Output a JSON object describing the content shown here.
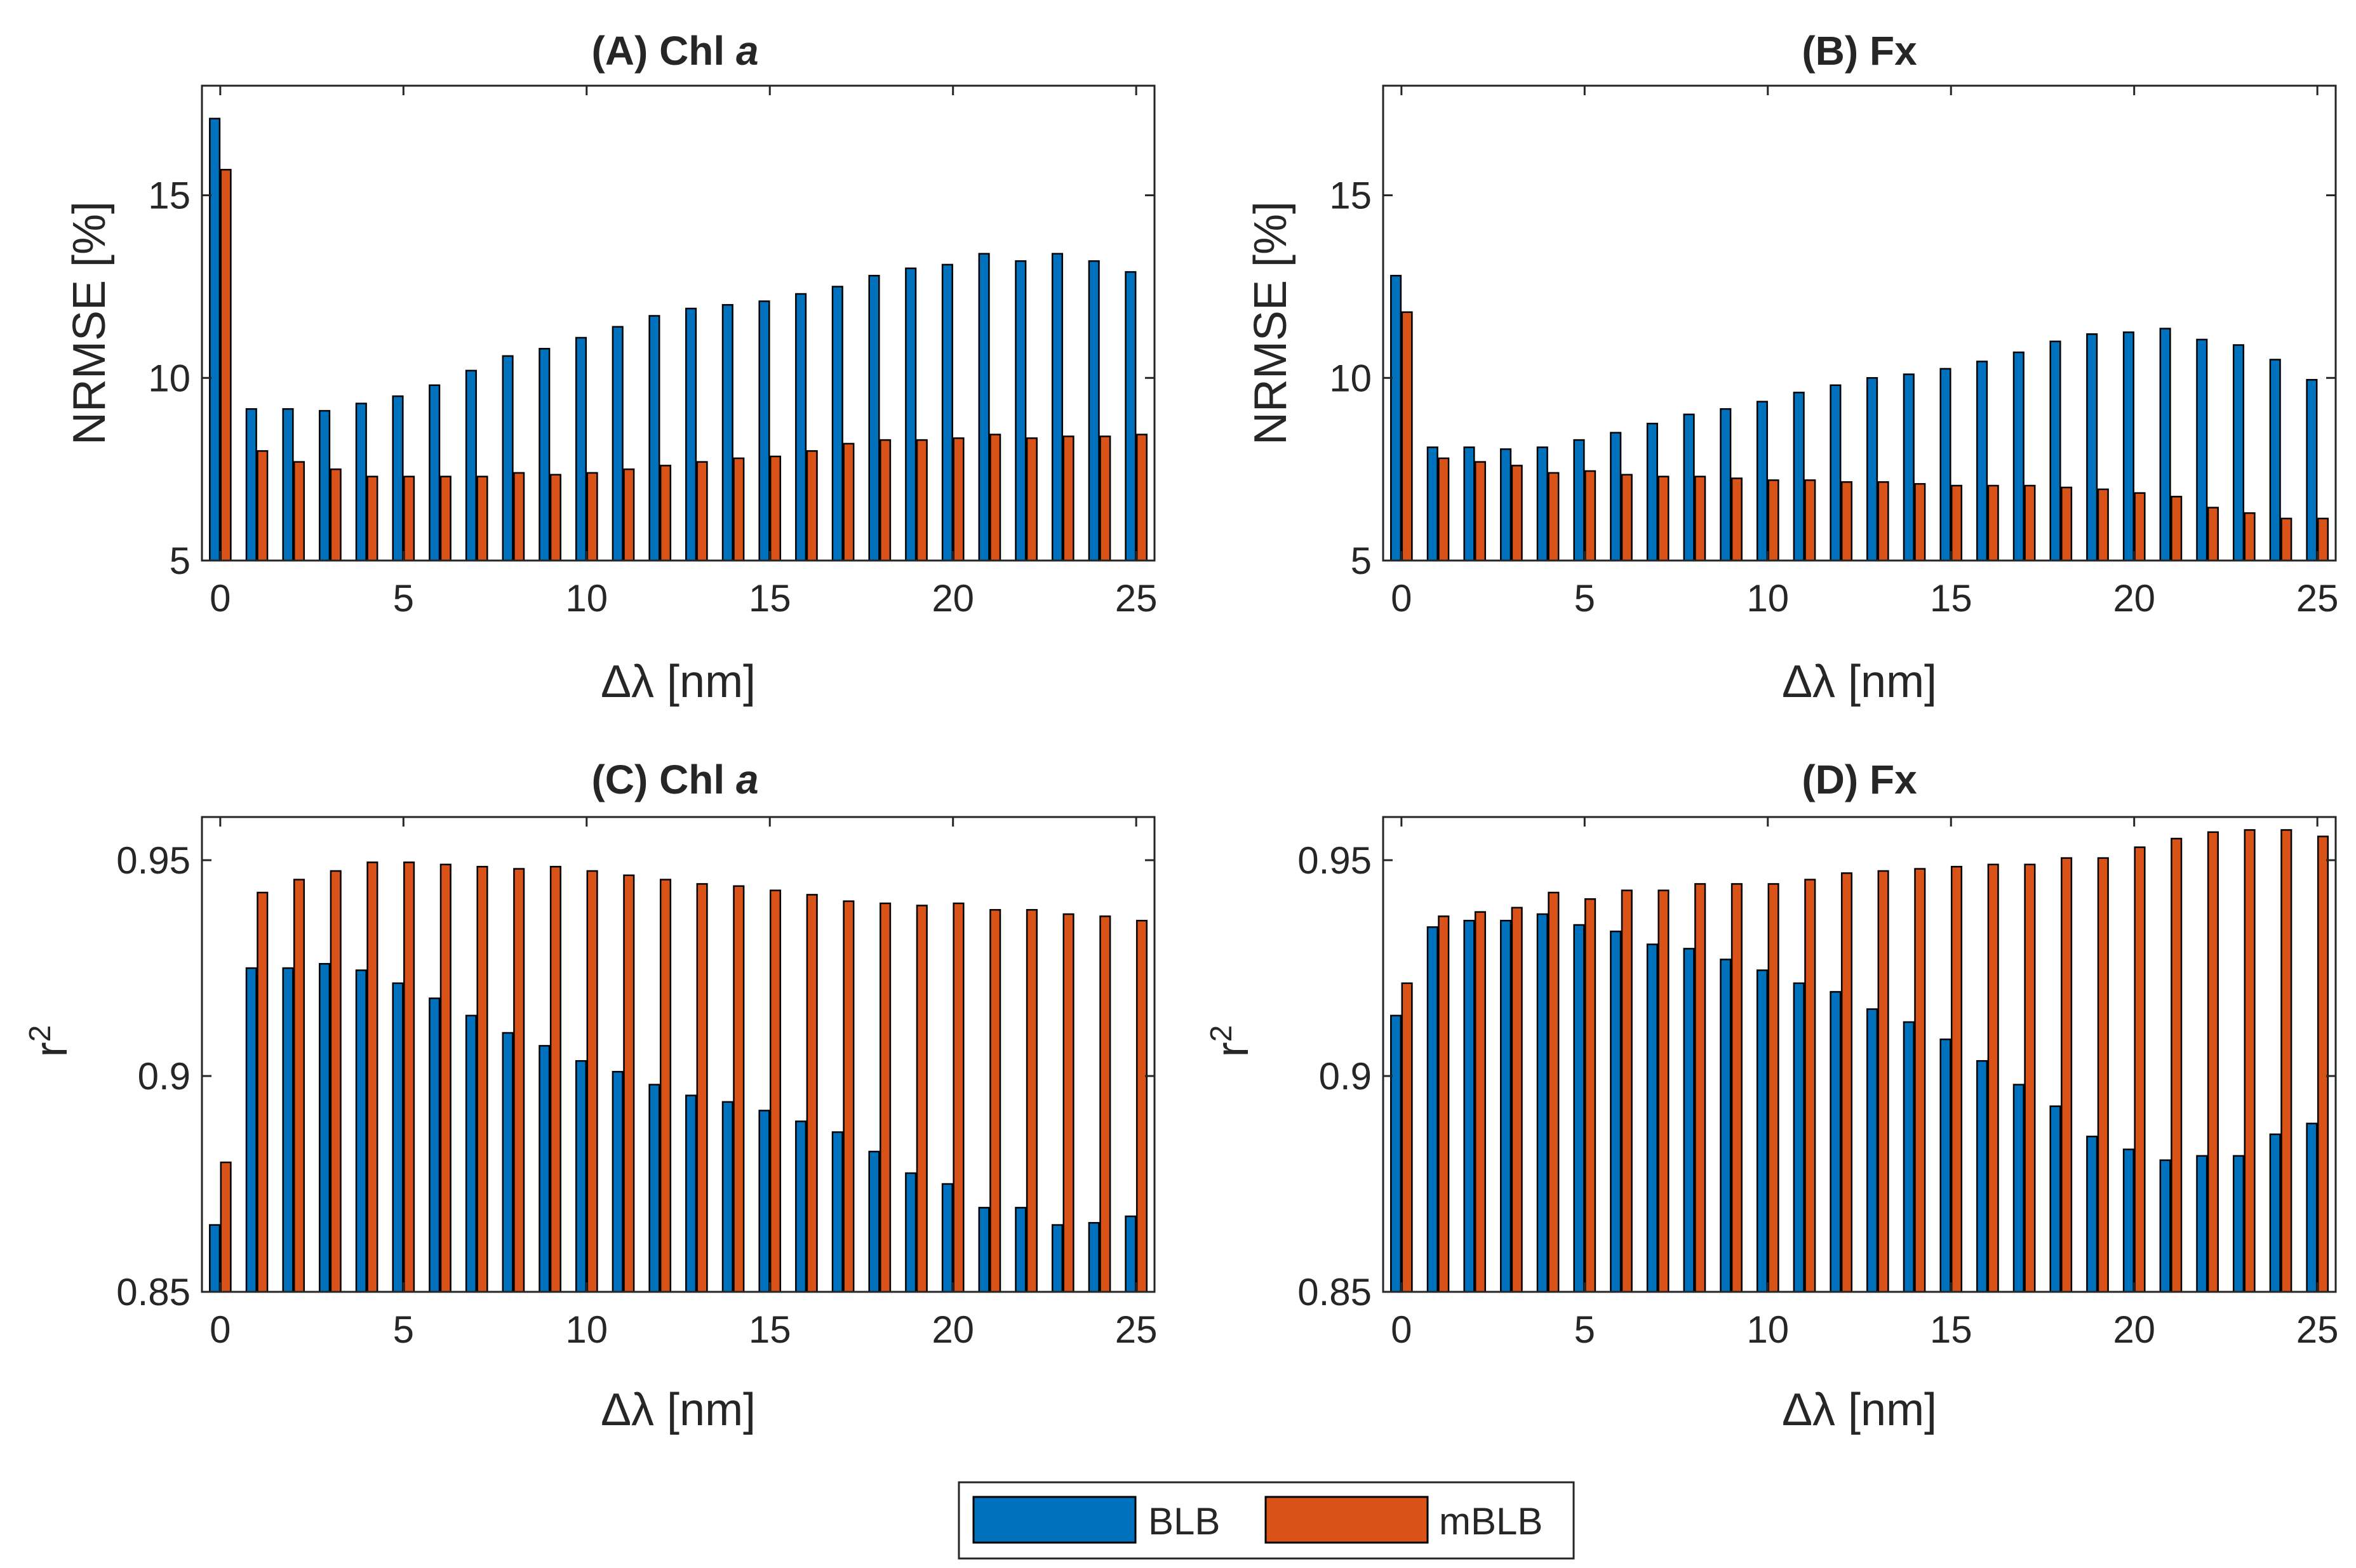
{
  "chart_data": [
    {
      "id": "A",
      "type": "bar",
      "title": "(A) Chl ",
      "title_italic": "a",
      "xlabel": "Δλ [nm]",
      "ylabel": "NRMSE [%]",
      "ylim": [
        5,
        18
      ],
      "xlim": [
        -0.5,
        25.5
      ],
      "xticks": [
        0,
        5,
        10,
        15,
        20,
        25
      ],
      "yticks": [
        5,
        10,
        15
      ],
      "ytick_labels": [
        "5",
        "10",
        "15"
      ],
      "x": [
        0,
        1,
        2,
        3,
        4,
        5,
        6,
        7,
        8,
        9,
        10,
        11,
        12,
        13,
        14,
        15,
        16,
        17,
        18,
        19,
        20,
        21,
        22,
        23,
        24,
        25
      ],
      "series": [
        {
          "name": "BLB",
          "values": [
            17.1,
            9.15,
            9.15,
            9.1,
            9.3,
            9.5,
            9.8,
            10.2,
            10.6,
            10.8,
            11.1,
            11.4,
            11.7,
            11.9,
            12.0,
            12.1,
            12.3,
            12.5,
            12.8,
            13.0,
            13.1,
            13.4,
            13.2,
            13.4,
            13.2,
            12.9
          ]
        },
        {
          "name": "mBLB",
          "values": [
            15.7,
            8.0,
            7.7,
            7.5,
            7.3,
            7.3,
            7.3,
            7.3,
            7.4,
            7.35,
            7.4,
            7.5,
            7.6,
            7.7,
            7.8,
            7.85,
            8.0,
            8.2,
            8.3,
            8.3,
            8.35,
            8.45,
            8.35,
            8.4,
            8.4,
            8.45
          ]
        }
      ]
    },
    {
      "id": "B",
      "type": "bar",
      "title": "(B) Fx",
      "title_italic": "",
      "xlabel": "Δλ [nm]",
      "ylabel": "NRMSE [%]",
      "ylim": [
        5,
        18
      ],
      "xlim": [
        -0.5,
        25.5
      ],
      "xticks": [
        0,
        5,
        10,
        15,
        20,
        25
      ],
      "yticks": [
        5,
        10,
        15
      ],
      "ytick_labels": [
        "5",
        "10",
        "15"
      ],
      "x": [
        0,
        1,
        2,
        3,
        4,
        5,
        6,
        7,
        8,
        9,
        10,
        11,
        12,
        13,
        14,
        15,
        16,
        17,
        18,
        19,
        20,
        21,
        22,
        23,
        24,
        25
      ],
      "series": [
        {
          "name": "BLB",
          "values": [
            12.8,
            8.1,
            8.1,
            8.05,
            8.1,
            8.3,
            8.5,
            8.75,
            9.0,
            9.15,
            9.35,
            9.6,
            9.8,
            10.0,
            10.1,
            10.25,
            10.45,
            10.7,
            11.0,
            11.2,
            11.25,
            11.35,
            11.05,
            10.9,
            10.5,
            9.95
          ]
        },
        {
          "name": "mBLB",
          "values": [
            11.8,
            7.8,
            7.7,
            7.6,
            7.4,
            7.45,
            7.35,
            7.3,
            7.3,
            7.25,
            7.2,
            7.2,
            7.15,
            7.15,
            7.1,
            7.05,
            7.05,
            7.05,
            7.0,
            6.95,
            6.85,
            6.75,
            6.45,
            6.3,
            6.15,
            6.15
          ]
        }
      ]
    },
    {
      "id": "C",
      "type": "bar",
      "title": "(C) Chl ",
      "title_italic": "a",
      "xlabel": "Δλ [nm]",
      "ylabel": "r",
      "ylabel_sup": "2",
      "ylim": [
        0.85,
        0.96
      ],
      "xlim": [
        -0.5,
        25.5
      ],
      "xticks": [
        0,
        5,
        10,
        15,
        20,
        25
      ],
      "yticks": [
        0.85,
        0.9,
        0.95
      ],
      "ytick_labels": [
        "0.85",
        "0.9",
        "0.95"
      ],
      "x": [
        0,
        1,
        2,
        3,
        4,
        5,
        6,
        7,
        8,
        9,
        10,
        11,
        12,
        13,
        14,
        15,
        16,
        17,
        18,
        19,
        20,
        21,
        22,
        23,
        24,
        25
      ],
      "series": [
        {
          "name": "BLB",
          "values": [
            0.8655,
            0.925,
            0.925,
            0.926,
            0.9245,
            0.9215,
            0.918,
            0.914,
            0.91,
            0.907,
            0.9035,
            0.901,
            0.898,
            0.8955,
            0.894,
            0.892,
            0.8895,
            0.887,
            0.8825,
            0.8775,
            0.875,
            0.8695,
            0.8695,
            0.8655,
            0.866,
            0.8675
          ]
        },
        {
          "name": "mBLB",
          "values": [
            0.88,
            0.9425,
            0.9455,
            0.9475,
            0.9495,
            0.9495,
            0.949,
            0.9485,
            0.948,
            0.9485,
            0.9475,
            0.9465,
            0.9455,
            0.9445,
            0.944,
            0.943,
            0.942,
            0.9405,
            0.94,
            0.9395,
            0.94,
            0.9385,
            0.9385,
            0.9375,
            0.937,
            0.936
          ]
        }
      ]
    },
    {
      "id": "D",
      "type": "bar",
      "title": "(D) Fx",
      "title_italic": "",
      "xlabel": "Δλ [nm]",
      "ylabel": "r",
      "ylabel_sup": "2",
      "ylim": [
        0.85,
        0.96
      ],
      "xlim": [
        -0.5,
        25.5
      ],
      "xticks": [
        0,
        5,
        10,
        15,
        20,
        25
      ],
      "yticks": [
        0.85,
        0.9,
        0.95
      ],
      "ytick_labels": [
        "0.85",
        "0.9",
        "0.95"
      ],
      "x": [
        0,
        1,
        2,
        3,
        4,
        5,
        6,
        7,
        8,
        9,
        10,
        11,
        12,
        13,
        14,
        15,
        16,
        17,
        18,
        19,
        20,
        21,
        22,
        23,
        24,
        25
      ],
      "series": [
        {
          "name": "BLB",
          "values": [
            0.914,
            0.9345,
            0.936,
            0.936,
            0.9375,
            0.935,
            0.9335,
            0.9305,
            0.9295,
            0.927,
            0.9245,
            0.9215,
            0.9195,
            0.9155,
            0.9125,
            0.9085,
            0.9035,
            0.898,
            0.893,
            0.886,
            0.883,
            0.8805,
            0.8815,
            0.8815,
            0.8865,
            0.889
          ]
        },
        {
          "name": "mBLB",
          "values": [
            0.9215,
            0.937,
            0.938,
            0.939,
            0.9425,
            0.941,
            0.943,
            0.943,
            0.9445,
            0.9445,
            0.9445,
            0.9455,
            0.947,
            0.9475,
            0.948,
            0.9485,
            0.949,
            0.949,
            0.9505,
            0.9505,
            0.953,
            0.955,
            0.9565,
            0.957,
            0.957,
            0.9555
          ]
        }
      ]
    }
  ],
  "legend": {
    "placement": "bottom-center",
    "entries": [
      {
        "label": "BLB",
        "color": "#0072BD"
      },
      {
        "label": "mBLB",
        "color": "#D95319"
      }
    ]
  },
  "colors": {
    "BLB": "#0072BD",
    "mBLB": "#D95319",
    "axis": "#262626"
  }
}
